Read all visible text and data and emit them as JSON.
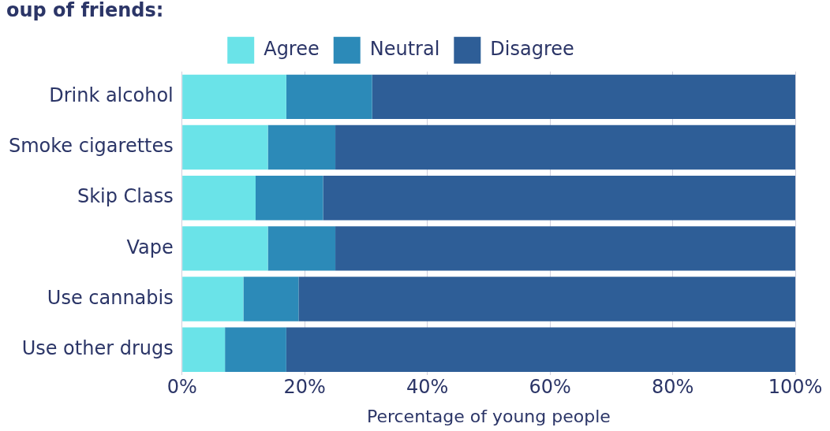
{
  "chart_data": {
    "type": "bar",
    "orientation": "horizontal",
    "stacked": true,
    "title": "oup of friends:",
    "xlabel": "Percentage of young people",
    "categories": [
      "Drink alcohol",
      "Smoke cigarettes",
      "Skip Class",
      "Vape",
      "Use cannabis",
      "Use other drugs"
    ],
    "series": [
      {
        "name": "Agree",
        "color": "#6ae3e8",
        "values": [
          17,
          14,
          12,
          14,
          10,
          7
        ]
      },
      {
        "name": "Neutral",
        "color": "#2c8ab8",
        "values": [
          14,
          11,
          11,
          11,
          9,
          10
        ]
      },
      {
        "name": "Disagree",
        "color": "#2e5e97",
        "values": [
          69,
          75,
          77,
          75,
          81,
          83
        ]
      }
    ],
    "xlim": [
      0,
      100
    ],
    "xticks": [
      {
        "value": 0,
        "label": "0%"
      },
      {
        "value": 20,
        "label": "20%"
      },
      {
        "value": 40,
        "label": "40%"
      },
      {
        "value": 60,
        "label": "60%"
      },
      {
        "value": 80,
        "label": "80%"
      },
      {
        "value": 100,
        "label": "100%"
      }
    ],
    "grid": "x",
    "legend": "top"
  }
}
